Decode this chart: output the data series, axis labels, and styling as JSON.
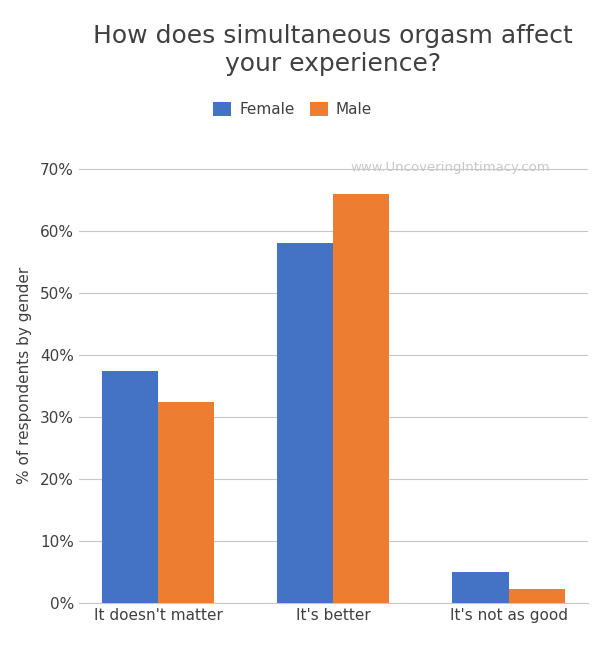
{
  "title": "How does simultaneous orgasm affect\nyour experience?",
  "categories": [
    "It doesn't matter",
    "It's better",
    "It's not as good"
  ],
  "female_values": [
    0.375,
    0.58,
    0.05
  ],
  "male_values": [
    0.325,
    0.66,
    0.022
  ],
  "female_color": "#4472C4",
  "male_color": "#ED7D31",
  "ylabel": "% of respondents by gender",
  "yticks": [
    0.0,
    0.1,
    0.2,
    0.3,
    0.4,
    0.5,
    0.6,
    0.7
  ],
  "yticklabels": [
    "0%",
    "10%",
    "20%",
    "30%",
    "40%",
    "50%",
    "60%",
    "70%"
  ],
  "ylim": [
    0,
    0.735
  ],
  "watermark": "www.UncoveringIntimacy.com",
  "legend_labels": [
    "Female",
    "Male"
  ],
  "bar_width": 0.32,
  "title_fontsize": 18,
  "label_fontsize": 11,
  "tick_fontsize": 11,
  "legend_fontsize": 11,
  "background_color": "#ffffff",
  "grid_color": "#c8c8c8",
  "title_color": "#404040",
  "watermark_color": "#c8c8c8"
}
